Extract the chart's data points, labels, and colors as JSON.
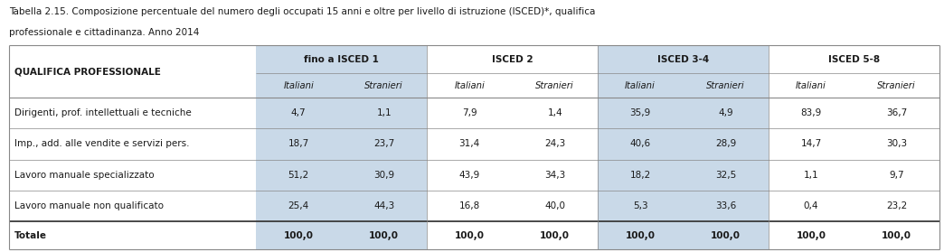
{
  "title_line1": "Tabella 2.15. Composizione percentuale del numero degli occupati 15 anni e oltre per livello di istruzione (ISCED)*, qualifica",
  "title_line2": "professionale e cittadinanza. Anno 2014",
  "col_groups": [
    "fino a ISCED 1",
    "ISCED 2",
    "ISCED 3-4",
    "ISCED 5-8"
  ],
  "sub_cols": [
    "Italiani",
    "Stranieri"
  ],
  "row_header": "QUALIFICA PROFESSIONALE",
  "rows": [
    {
      "label": "Dirigenti, prof. intellettuali e tecniche",
      "values": [
        "4,7",
        "1,1",
        "7,9",
        "1,4",
        "35,9",
        "4,9",
        "83,9",
        "36,7"
      ]
    },
    {
      "label": "Imp., add. alle vendite e servizi pers.",
      "values": [
        "18,7",
        "23,7",
        "31,4",
        "24,3",
        "40,6",
        "28,9",
        "14,7",
        "30,3"
      ]
    },
    {
      "label": "Lavoro manuale specializzato",
      "values": [
        "51,2",
        "30,9",
        "43,9",
        "34,3",
        "18,2",
        "32,5",
        "1,1",
        "9,7"
      ]
    },
    {
      "label": "Lavoro manuale non qualificato",
      "values": [
        "25,4",
        "44,3",
        "16,8",
        "40,0",
        "5,3",
        "33,6",
        "0,4",
        "23,2"
      ]
    },
    {
      "label": "Totale",
      "values": [
        "100,0",
        "100,0",
        "100,0",
        "100,0",
        "100,0",
        "100,0",
        "100,0",
        "100,0"
      ],
      "bold": true
    }
  ],
  "bg_color_light": "#c9d9e8",
  "bg_color_white": "#ffffff",
  "bg_color_header": "#c9d9e8",
  "text_color": "#1a1a1a",
  "border_color": "#888888",
  "fig_bg": "#ffffff"
}
